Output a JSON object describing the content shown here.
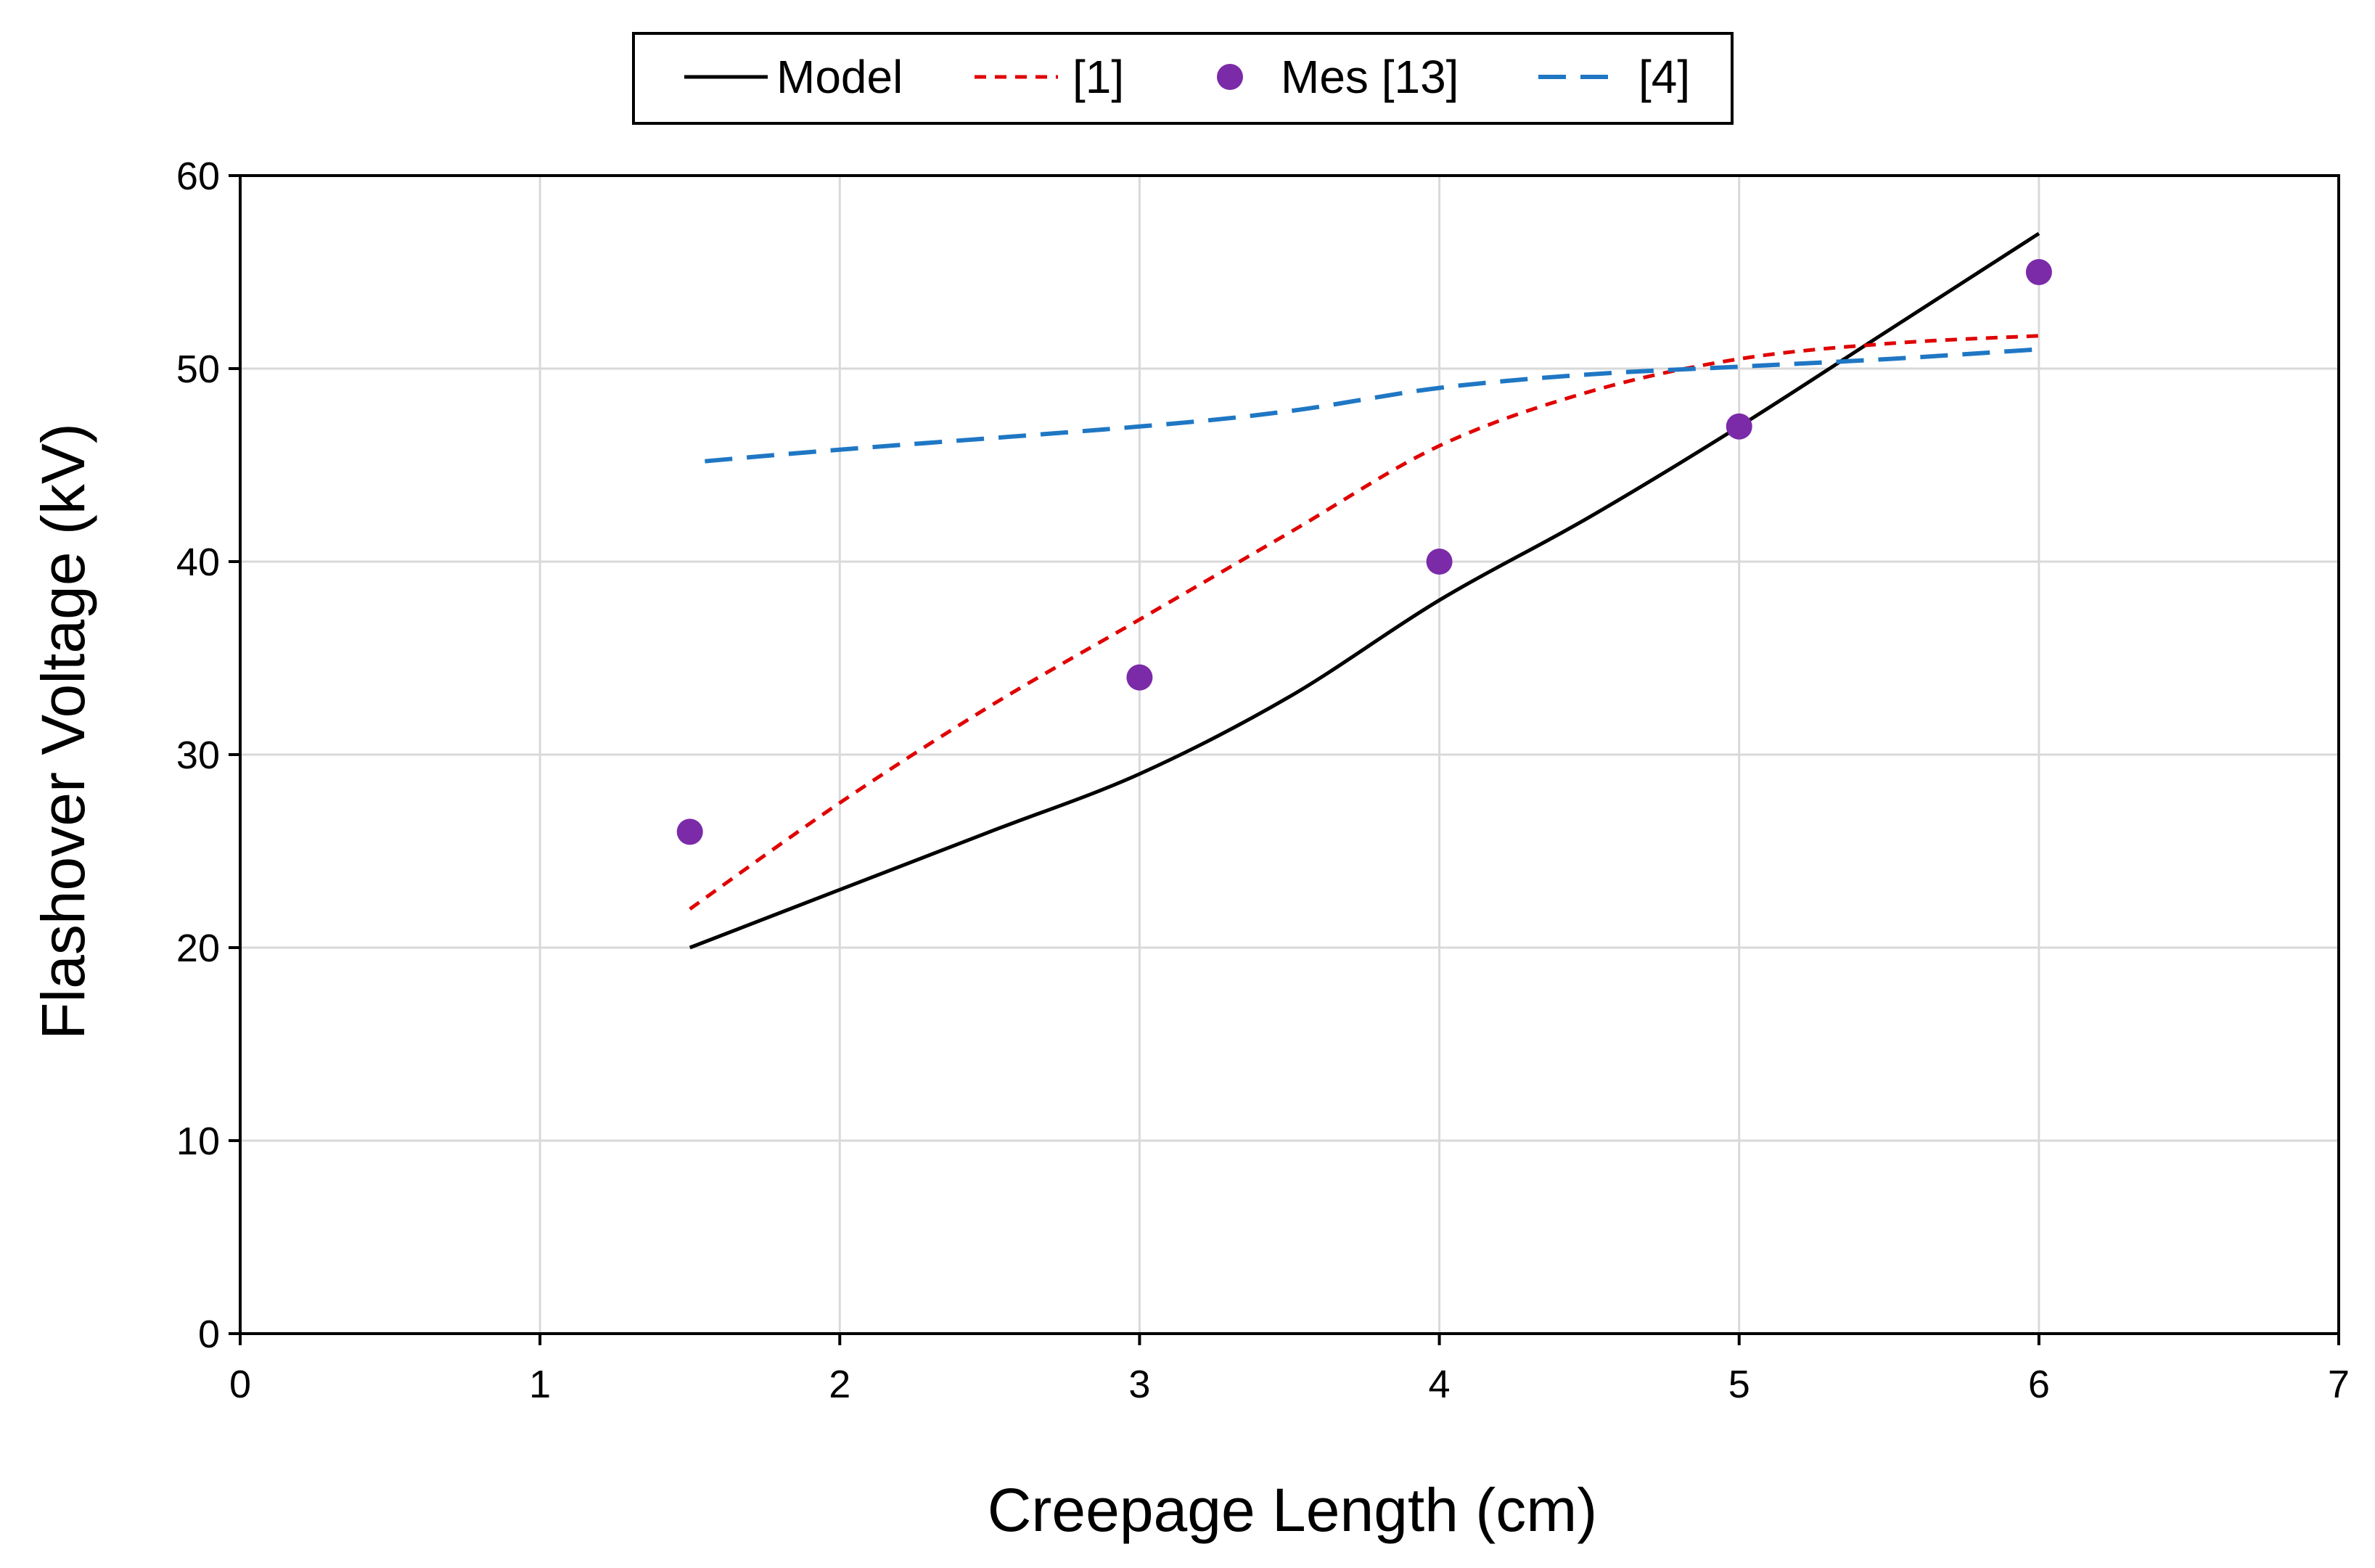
{
  "chart_data": {
    "type": "line",
    "xlabel": "Creepage Length (cm)",
    "ylabel": "Flashover Voltage (kV)",
    "xlim": [
      0,
      7
    ],
    "ylim": [
      0,
      60
    ],
    "xticks": [
      0,
      1,
      2,
      3,
      4,
      5,
      6,
      7
    ],
    "yticks": [
      0,
      10,
      20,
      30,
      40,
      50,
      60
    ],
    "grid": true,
    "legend_position": "top-center",
    "series": [
      {
        "name": "Model",
        "style": "solid-line",
        "color": "#000000",
        "x": [
          1.5,
          2,
          2.5,
          3,
          3.5,
          4,
          4.5,
          5,
          5.5,
          6
        ],
        "y": [
          20,
          23,
          26,
          29,
          33,
          38,
          42.3,
          47,
          52,
          57
        ]
      },
      {
        "name": "[1]",
        "style": "dotted-line",
        "color": "#e00000",
        "x": [
          1.5,
          2,
          2.5,
          3,
          3.5,
          4,
          4.5,
          5,
          5.5,
          6
        ],
        "y": [
          22,
          27.5,
          32.5,
          37,
          41.5,
          46,
          48.8,
          50.5,
          51.3,
          51.7
        ]
      },
      {
        "name": "Mes [13]",
        "style": "markers",
        "color": "#7b2aa8",
        "x": [
          1.5,
          3,
          4,
          5,
          6
        ],
        "y": [
          26,
          34,
          40,
          47,
          55
        ]
      },
      {
        "name": "[4]",
        "style": "dashed-line",
        "color": "#1f77c4",
        "x": [
          1.55,
          2,
          3,
          3.5,
          4,
          4.5,
          5,
          5.5,
          6
        ],
        "y": [
          45.2,
          45.8,
          47,
          47.8,
          49,
          49.7,
          50.1,
          50.5,
          51
        ]
      }
    ]
  }
}
